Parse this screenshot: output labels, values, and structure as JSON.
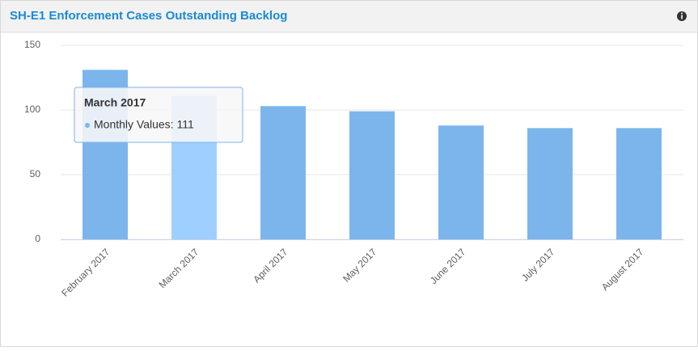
{
  "chart_data": {
    "type": "bar",
    "title": "SH-E1 Enforcement Cases Outstanding Backlog",
    "categories": [
      "February 2017",
      "March 2017",
      "April 2017",
      "May 2017",
      "June 2017",
      "July 2017",
      "August 2017"
    ],
    "series": [
      {
        "name": "Monthly Values",
        "color": "#7cb5ec",
        "values": [
          131,
          111,
          103,
          99,
          88,
          86,
          86
        ]
      }
    ],
    "ylim": [
      0,
      150
    ],
    "yticks": [
      0,
      50,
      100,
      150
    ],
    "grid": true,
    "highlight": {
      "index": 1,
      "color": "#9ecfff"
    },
    "tooltip": {
      "title": "March 2017",
      "label": "Monthly Values: 111"
    }
  }
}
